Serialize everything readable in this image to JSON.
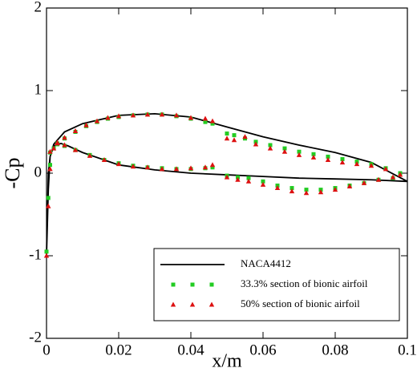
{
  "chart_data": {
    "type": "line_scatter",
    "xlabel": "x/m",
    "ylabel": "-Cp",
    "xlim": [
      0,
      0.1
    ],
    "ylim": [
      -2,
      2
    ],
    "xticks": [
      0,
      0.02,
      0.04,
      0.06,
      0.08,
      0.1
    ],
    "yticks": [
      -2,
      -1,
      0,
      1,
      2
    ],
    "series": [
      {
        "name": "NACA4412",
        "color": "#000000",
        "kind": "line",
        "x": [
          0,
          0.0005,
          0.001,
          0.002,
          0.005,
          0.01,
          0.02,
          0.03,
          0.04,
          0.05,
          0.06,
          0.07,
          0.08,
          0.09,
          0.1,
          null,
          0,
          0.0005,
          0.001,
          0.002,
          0.004,
          0.006,
          0.01,
          0.02,
          0.03,
          0.04,
          0.05,
          0.06,
          0.07,
          0.08,
          0.09,
          0.1
        ],
        "values": [
          -1.0,
          0.0,
          0.2,
          0.35,
          0.5,
          0.6,
          0.7,
          0.72,
          0.68,
          0.56,
          0.44,
          0.34,
          0.25,
          0.13,
          -0.1,
          null,
          -1.0,
          -0.2,
          0.2,
          0.33,
          0.36,
          0.33,
          0.25,
          0.1,
          0.04,
          0.0,
          -0.02,
          -0.04,
          -0.06,
          -0.07,
          -0.08,
          -0.1
        ]
      },
      {
        "name": "33.3% section of bionic airfoil",
        "color": "#22cc22",
        "kind": "square",
        "x": [
          0,
          0.0005,
          0.001,
          0.002,
          0.003,
          0.005,
          0.008,
          0.011,
          0.014,
          0.017,
          0.02,
          0.024,
          0.028,
          0.032,
          0.036,
          0.04,
          0.044,
          0.046,
          0.05,
          0.052,
          0.055,
          0.058,
          0.062,
          0.066,
          0.07,
          0.074,
          0.078,
          0.082,
          0.086,
          0.09,
          0.094,
          0.098,
          0.001,
          0.003,
          0.005,
          0.008,
          0.012,
          0.016,
          0.02,
          0.024,
          0.028,
          0.032,
          0.036,
          0.04,
          0.044,
          0.046,
          0.05,
          0.053,
          0.056,
          0.06,
          0.064,
          0.068,
          0.072,
          0.076,
          0.08,
          0.084,
          0.088,
          0.092,
          0.096
        ],
        "values": [
          -0.95,
          -0.3,
          0.1,
          0.3,
          0.36,
          0.42,
          0.5,
          0.57,
          0.62,
          0.66,
          0.68,
          0.7,
          0.71,
          0.71,
          0.69,
          0.66,
          0.62,
          0.6,
          0.48,
          0.46,
          0.42,
          0.38,
          0.34,
          0.3,
          0.26,
          0.23,
          0.2,
          0.17,
          0.14,
          0.11,
          0.06,
          0.0,
          0.25,
          0.35,
          0.33,
          0.28,
          0.22,
          0.16,
          0.12,
          0.09,
          0.07,
          0.06,
          0.05,
          0.05,
          0.06,
          0.07,
          -0.03,
          -0.05,
          -0.06,
          -0.1,
          -0.15,
          -0.18,
          -0.2,
          -0.2,
          -0.18,
          -0.15,
          -0.12,
          -0.08,
          -0.06
        ]
      },
      {
        "name": "50% section of bionic airfoil",
        "color": "#dd1111",
        "kind": "triangle",
        "x": [
          0,
          0.0005,
          0.001,
          0.002,
          0.003,
          0.005,
          0.008,
          0.011,
          0.014,
          0.017,
          0.02,
          0.024,
          0.028,
          0.032,
          0.036,
          0.04,
          0.044,
          0.046,
          0.05,
          0.052,
          0.055,
          0.058,
          0.062,
          0.066,
          0.07,
          0.074,
          0.078,
          0.082,
          0.086,
          0.09,
          0.094,
          0.098,
          0.001,
          0.003,
          0.005,
          0.008,
          0.012,
          0.016,
          0.02,
          0.024,
          0.028,
          0.032,
          0.036,
          0.04,
          0.044,
          0.046,
          0.05,
          0.053,
          0.056,
          0.06,
          0.064,
          0.068,
          0.072,
          0.076,
          0.08,
          0.084,
          0.088,
          0.092,
          0.096
        ],
        "values": [
          -1.0,
          -0.4,
          0.05,
          0.3,
          0.37,
          0.43,
          0.51,
          0.58,
          0.63,
          0.67,
          0.69,
          0.7,
          0.71,
          0.71,
          0.7,
          0.67,
          0.66,
          0.63,
          0.42,
          0.4,
          0.44,
          0.35,
          0.3,
          0.26,
          0.22,
          0.19,
          0.16,
          0.13,
          0.11,
          0.09,
          0.05,
          -0.02,
          0.26,
          0.36,
          0.34,
          0.28,
          0.21,
          0.16,
          0.11,
          0.08,
          0.07,
          0.05,
          0.05,
          0.06,
          0.07,
          0.1,
          -0.05,
          -0.08,
          -0.1,
          -0.14,
          -0.18,
          -0.22,
          -0.24,
          -0.23,
          -0.2,
          -0.16,
          -0.12,
          -0.08,
          -0.05
        ]
      }
    ]
  }
}
